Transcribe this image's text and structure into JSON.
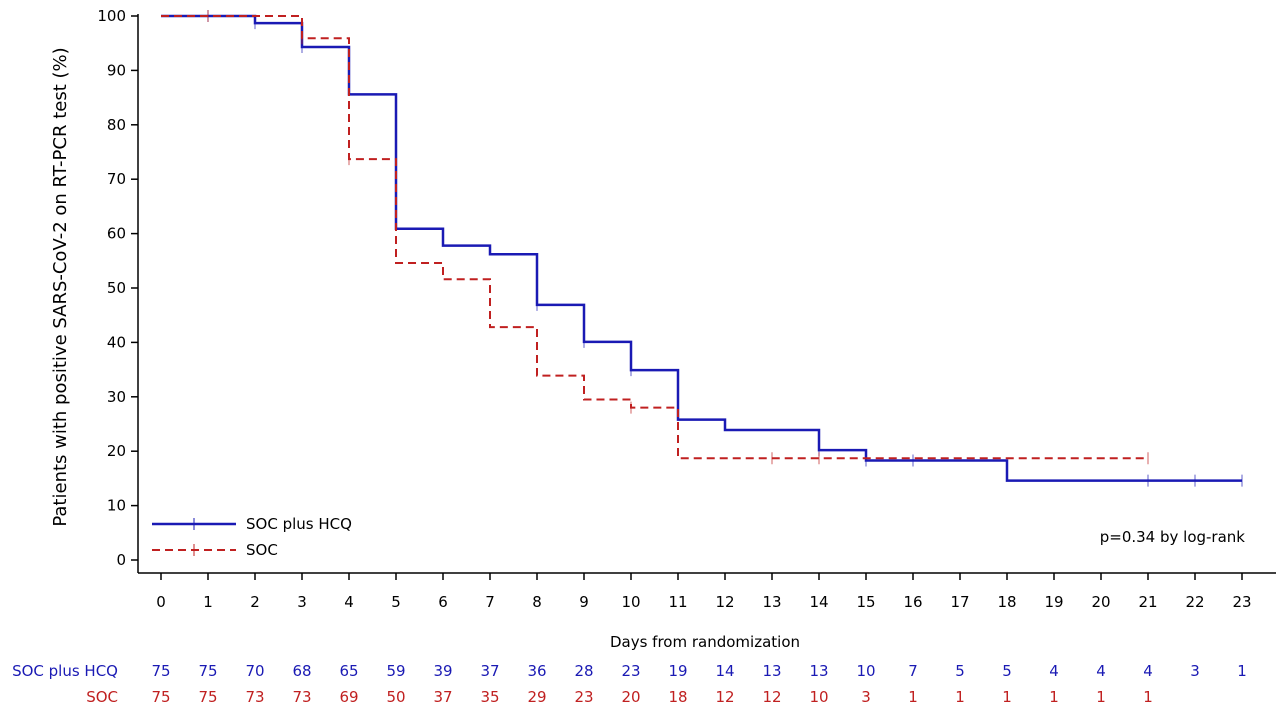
{
  "chart_data": {
    "type": "line",
    "subtype": "kaplan-meier-step",
    "title": "",
    "xlabel": "Days from randomization",
    "ylabel": "Patients with positive SARS-CoV-2 on RT-PCR test (%)",
    "xlim": [
      -0.5,
      23.5
    ],
    "ylim": [
      -2,
      101
    ],
    "x_ticks": [
      0,
      1,
      2,
      3,
      4,
      5,
      6,
      7,
      8,
      9,
      10,
      11,
      12,
      13,
      14,
      15,
      16,
      17,
      18,
      19,
      20,
      21,
      22,
      23
    ],
    "y_ticks": [
      0,
      10,
      20,
      30,
      40,
      50,
      60,
      70,
      80,
      90,
      100
    ],
    "grid": false,
    "legend_position": "bottom-left",
    "annotation": "p=0.34 by log-rank",
    "series": [
      {
        "name": "SOC plus HCQ",
        "color": "#1a1ab4",
        "line_style": "solid",
        "steps": [
          [
            0,
            100
          ],
          [
            2,
            98.7
          ],
          [
            3,
            94.3
          ],
          [
            4,
            85.6
          ],
          [
            5,
            60.9
          ],
          [
            6,
            57.8
          ],
          [
            7,
            56.2
          ],
          [
            8,
            46.9
          ],
          [
            9,
            40.1
          ],
          [
            10,
            34.9
          ],
          [
            11,
            25.8
          ],
          [
            12,
            23.9
          ],
          [
            14,
            20.2
          ],
          [
            15,
            18.3
          ],
          [
            18,
            14.6
          ],
          [
            23,
            14.6
          ]
        ],
        "censor_x": [
          1,
          2,
          3,
          8,
          9,
          10,
          14,
          15,
          16,
          21,
          22,
          23
        ]
      },
      {
        "name": "SOC",
        "color": "#c02020",
        "line_style": "dashed",
        "steps": [
          [
            0,
            100
          ],
          [
            3,
            95.9
          ],
          [
            4,
            73.7
          ],
          [
            5,
            54.6
          ],
          [
            6,
            51.6
          ],
          [
            7,
            42.8
          ],
          [
            8,
            33.9
          ],
          [
            9,
            29.5
          ],
          [
            10,
            28.0
          ],
          [
            11,
            18.7
          ],
          [
            21,
            18.7
          ]
        ],
        "censor_x": [
          1,
          3,
          4,
          10,
          13,
          14,
          21
        ]
      }
    ],
    "risk_table": {
      "x": [
        0,
        1,
        2,
        3,
        4,
        5,
        6,
        7,
        8,
        9,
        10,
        11,
        12,
        13,
        14,
        15,
        16,
        17,
        18,
        19,
        20,
        21,
        22,
        23
      ],
      "rows": [
        {
          "label": "SOC plus HCQ",
          "color": "#1a1ab4",
          "values": [
            "75",
            "75",
            "70",
            "68",
            "65",
            "59",
            "39",
            "37",
            "36",
            "28",
            "23",
            "19",
            "14",
            "13",
            "13",
            "10",
            "7",
            "5",
            "5",
            "4",
            "4",
            "4",
            "3",
            "1"
          ]
        },
        {
          "label": "SOC",
          "color": "#c02020",
          "values": [
            "75",
            "75",
            "73",
            "73",
            "69",
            "50",
            "37",
            "35",
            "29",
            "23",
            "20",
            "18",
            "12",
            "12",
            "10",
            "3",
            "1",
            "1",
            "1",
            "1",
            "1",
            "1",
            "",
            ""
          ]
        }
      ]
    }
  }
}
